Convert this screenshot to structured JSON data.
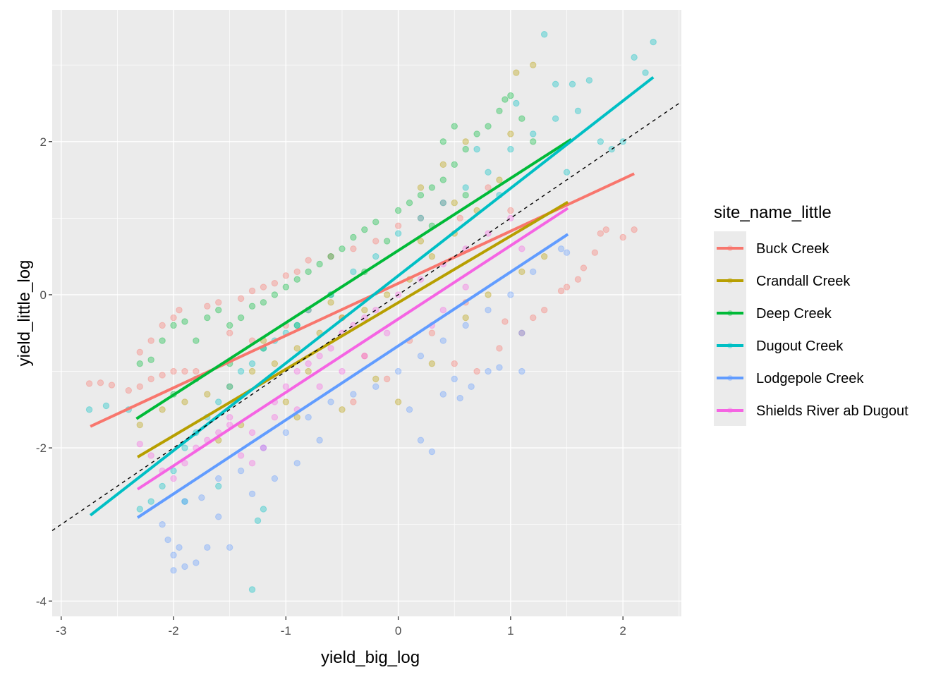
{
  "chart_data": {
    "type": "scatter",
    "title": "",
    "xlabel": "yield_big_log",
    "ylabel": "yield_little_log",
    "xlim": [
      -3.08,
      2.52
    ],
    "ylim": [
      -4.2,
      3.72
    ],
    "x_ticks": [
      -3,
      -2,
      -1,
      0,
      1,
      2
    ],
    "x_tick_labels": [
      "-3",
      "-2",
      "-1",
      "0",
      "1",
      "2"
    ],
    "y_ticks": [
      -4,
      -2,
      0,
      2
    ],
    "y_tick_labels": [
      "-4",
      "-2",
      "0",
      "2"
    ],
    "grid": true,
    "legend": {
      "title": "site_name_little",
      "placement": "right"
    },
    "reference_line": {
      "type": "identity",
      "slope": 1,
      "intercept": 0,
      "style": "dashed",
      "color": "#000000"
    },
    "series": [
      {
        "name": "Buck Creek",
        "color": "#F8766D",
        "fit_line": [
          [
            -2.74,
            -1.72
          ],
          [
            2.1,
            1.58
          ]
        ],
        "points": [
          [
            -2.75,
            -1.16
          ],
          [
            -2.65,
            -1.15
          ],
          [
            -2.55,
            -1.18
          ],
          [
            -2.4,
            -1.25
          ],
          [
            -2.3,
            -1.2
          ],
          [
            -2.2,
            -1.1
          ],
          [
            -2.3,
            -0.75
          ],
          [
            -2.2,
            -0.6
          ],
          [
            -2.1,
            -0.4
          ],
          [
            -2.0,
            -0.3
          ],
          [
            -1.95,
            -0.2
          ],
          [
            -1.9,
            -1.0
          ],
          [
            -2.0,
            -1.0
          ],
          [
            -1.7,
            -0.15
          ],
          [
            -1.6,
            -0.1
          ],
          [
            -1.4,
            -0.05
          ],
          [
            -1.3,
            0.05
          ],
          [
            -1.2,
            0.1
          ],
          [
            -1.1,
            0.15
          ],
          [
            -1.0,
            0.25
          ],
          [
            -0.9,
            0.3
          ],
          [
            -0.8,
            0.45
          ],
          [
            -0.6,
            0.5
          ],
          [
            -0.4,
            0.6
          ],
          [
            -0.2,
            0.7
          ],
          [
            0.0,
            0.9
          ],
          [
            0.2,
            1.0
          ],
          [
            0.4,
            1.2
          ],
          [
            0.55,
            1.0
          ],
          [
            0.8,
            1.4
          ],
          [
            1.0,
            1.1
          ],
          [
            -1.5,
            -0.5
          ],
          [
            -1.3,
            -0.6
          ],
          [
            -1.0,
            -0.4
          ],
          [
            -0.8,
            -0.2
          ],
          [
            -0.5,
            -0.3
          ],
          [
            -0.3,
            -0.8
          ],
          [
            0.1,
            -0.6
          ],
          [
            0.3,
            -0.5
          ],
          [
            0.5,
            -0.9
          ],
          [
            0.7,
            -1.0
          ],
          [
            0.9,
            -0.7
          ],
          [
            1.1,
            -0.5
          ],
          [
            1.2,
            -0.3
          ],
          [
            1.3,
            -0.2
          ],
          [
            1.5,
            0.1
          ],
          [
            1.6,
            0.2
          ],
          [
            1.75,
            0.55
          ],
          [
            1.8,
            0.8
          ],
          [
            1.85,
            0.85
          ],
          [
            2.0,
            0.75
          ],
          [
            2.1,
            0.85
          ],
          [
            1.65,
            0.35
          ],
          [
            1.45,
            0.05
          ],
          [
            0.95,
            -0.35
          ],
          [
            0.6,
            -0.1
          ],
          [
            -0.1,
            -1.1
          ],
          [
            -0.4,
            -1.4
          ],
          [
            -1.8,
            -1.0
          ],
          [
            -2.1,
            -1.05
          ]
        ]
      },
      {
        "name": "Crandall Creek",
        "color": "#B79F00",
        "fit_line": [
          [
            -2.32,
            -2.12
          ],
          [
            1.51,
            1.21
          ]
        ],
        "points": [
          [
            -2.3,
            -1.7
          ],
          [
            -2.1,
            -1.5
          ],
          [
            -1.9,
            -1.4
          ],
          [
            -1.7,
            -1.3
          ],
          [
            -1.5,
            -1.2
          ],
          [
            -1.3,
            -1.0
          ],
          [
            -1.1,
            -0.9
          ],
          [
            -0.9,
            -0.7
          ],
          [
            -0.7,
            -0.5
          ],
          [
            -0.5,
            -0.3
          ],
          [
            -0.3,
            -0.2
          ],
          [
            -0.1,
            0.0
          ],
          [
            0.1,
            0.2
          ],
          [
            0.3,
            0.5
          ],
          [
            0.5,
            0.8
          ],
          [
            0.7,
            1.1
          ],
          [
            0.9,
            1.5
          ],
          [
            1.0,
            2.1
          ],
          [
            1.05,
            2.9
          ],
          [
            1.2,
            3.0
          ],
          [
            0.6,
            2.0
          ],
          [
            0.4,
            1.7
          ],
          [
            0.2,
            1.4
          ],
          [
            -0.2,
            -1.1
          ],
          [
            -0.5,
            -1.5
          ],
          [
            -0.9,
            -1.6
          ],
          [
            0.0,
            -1.4
          ],
          [
            0.3,
            -0.9
          ],
          [
            0.6,
            -0.3
          ],
          [
            0.8,
            0.0
          ],
          [
            1.1,
            0.3
          ],
          [
            1.3,
            0.5
          ],
          [
            -1.6,
            -1.9
          ],
          [
            -1.4,
            -1.7
          ],
          [
            -1.0,
            -1.4
          ],
          [
            -0.8,
            -1.0
          ],
          [
            -1.2,
            -0.6
          ],
          [
            -0.6,
            -0.1
          ],
          [
            0.2,
            0.7
          ],
          [
            0.5,
            1.2
          ]
        ]
      },
      {
        "name": "Deep Creek",
        "color": "#00BA38",
        "fit_line": [
          [
            -2.33,
            -1.62
          ],
          [
            1.54,
            2.03
          ]
        ],
        "points": [
          [
            -2.3,
            -0.9
          ],
          [
            -2.2,
            -0.85
          ],
          [
            -2.1,
            -0.6
          ],
          [
            -2.0,
            -0.4
          ],
          [
            -1.9,
            -0.35
          ],
          [
            -1.8,
            -0.6
          ],
          [
            -1.7,
            -0.3
          ],
          [
            -1.6,
            -0.2
          ],
          [
            -1.5,
            -0.4
          ],
          [
            -1.4,
            -0.3
          ],
          [
            -1.3,
            -0.15
          ],
          [
            -1.2,
            -0.1
          ],
          [
            -1.1,
            0.0
          ],
          [
            -1.0,
            0.1
          ],
          [
            -0.9,
            0.2
          ],
          [
            -0.8,
            0.3
          ],
          [
            -0.7,
            0.4
          ],
          [
            -0.6,
            0.5
          ],
          [
            -0.5,
            0.6
          ],
          [
            -0.4,
            0.75
          ],
          [
            -0.3,
            0.85
          ],
          [
            -0.2,
            0.95
          ],
          [
            0.0,
            1.1
          ],
          [
            0.1,
            1.2
          ],
          [
            0.2,
            1.3
          ],
          [
            0.3,
            1.4
          ],
          [
            0.4,
            1.5
          ],
          [
            0.5,
            1.7
          ],
          [
            0.6,
            1.9
          ],
          [
            0.7,
            2.1
          ],
          [
            0.8,
            2.2
          ],
          [
            0.9,
            2.4
          ],
          [
            1.0,
            2.6
          ],
          [
            0.5,
            2.2
          ],
          [
            0.4,
            2.0
          ],
          [
            0.95,
            2.55
          ],
          [
            1.1,
            2.3
          ],
          [
            1.2,
            2.0
          ],
          [
            -0.1,
            0.7
          ],
          [
            -0.3,
            0.3
          ],
          [
            -0.6,
            0.0
          ],
          [
            -0.9,
            -0.4
          ],
          [
            -1.2,
            -0.7
          ],
          [
            -1.5,
            -0.9
          ],
          [
            -1.8,
            -1.1
          ],
          [
            -2.0,
            -1.3
          ],
          [
            0.3,
            0.9
          ],
          [
            0.6,
            1.3
          ]
        ]
      },
      {
        "name": "Dugout Creek",
        "color": "#00BFC4",
        "fit_line": [
          [
            -2.74,
            -2.88
          ],
          [
            2.27,
            2.84
          ]
        ],
        "points": [
          [
            -2.75,
            -1.5
          ],
          [
            -2.6,
            -1.45
          ],
          [
            -2.4,
            -1.5
          ],
          [
            -2.3,
            -2.8
          ],
          [
            -2.2,
            -2.7
          ],
          [
            -2.1,
            -2.5
          ],
          [
            -2.0,
            -2.3
          ],
          [
            -1.9,
            -2.0
          ],
          [
            -1.8,
            -1.8
          ],
          [
            -1.7,
            -1.6
          ],
          [
            -1.6,
            -1.4
          ],
          [
            -1.5,
            -1.2
          ],
          [
            -1.4,
            -1.0
          ],
          [
            -1.3,
            -0.9
          ],
          [
            -1.2,
            -0.7
          ],
          [
            -1.1,
            -0.6
          ],
          [
            -1.0,
            -0.5
          ],
          [
            -0.9,
            -0.4
          ],
          [
            -0.8,
            -0.2
          ],
          [
            -0.6,
            0.0
          ],
          [
            -0.4,
            0.3
          ],
          [
            -0.2,
            0.5
          ],
          [
            0.0,
            0.8
          ],
          [
            0.2,
            1.0
          ],
          [
            0.4,
            1.2
          ],
          [
            0.6,
            1.4
          ],
          [
            0.8,
            1.6
          ],
          [
            1.0,
            1.9
          ],
          [
            1.2,
            2.1
          ],
          [
            1.4,
            2.3
          ],
          [
            1.6,
            2.4
          ],
          [
            1.7,
            2.8
          ],
          [
            1.8,
            2.0
          ],
          [
            2.0,
            2.0
          ],
          [
            2.1,
            3.1
          ],
          [
            2.2,
            2.9
          ],
          [
            2.27,
            3.3
          ],
          [
            1.3,
            3.4
          ],
          [
            1.05,
            2.5
          ],
          [
            1.4,
            2.75
          ],
          [
            1.55,
            2.75
          ],
          [
            -1.2,
            -2.8
          ],
          [
            -1.25,
            -2.95
          ],
          [
            -1.3,
            -3.85
          ],
          [
            -1.6,
            -2.5
          ],
          [
            -1.9,
            -2.7
          ],
          [
            0.7,
            1.9
          ],
          [
            0.9,
            1.3
          ],
          [
            1.5,
            1.6
          ],
          [
            1.9,
            1.9
          ]
        ]
      },
      {
        "name": "Lodgepole Creek",
        "color": "#619CFF",
        "fit_line": [
          [
            -2.32,
            -2.91
          ],
          [
            1.51,
            0.79
          ]
        ],
        "points": [
          [
            -2.1,
            -3.0
          ],
          [
            -2.05,
            -3.2
          ],
          [
            -2.0,
            -3.4
          ],
          [
            -2.0,
            -3.6
          ],
          [
            -1.95,
            -3.3
          ],
          [
            -1.9,
            -3.55
          ],
          [
            -1.8,
            -3.5
          ],
          [
            -1.7,
            -3.3
          ],
          [
            -1.6,
            -2.9
          ],
          [
            -1.5,
            -3.3
          ],
          [
            -1.9,
            -2.7
          ],
          [
            -1.75,
            -2.65
          ],
          [
            -1.6,
            -2.4
          ],
          [
            -1.4,
            -2.3
          ],
          [
            -1.2,
            -2.0
          ],
          [
            -1.0,
            -1.8
          ],
          [
            -0.8,
            -1.6
          ],
          [
            -0.6,
            -1.4
          ],
          [
            -0.4,
            -1.3
          ],
          [
            -0.2,
            -1.2
          ],
          [
            0.0,
            -1.0
          ],
          [
            0.2,
            -0.8
          ],
          [
            0.4,
            -0.6
          ],
          [
            0.6,
            -0.4
          ],
          [
            0.8,
            -0.2
          ],
          [
            1.0,
            0.0
          ],
          [
            1.2,
            0.3
          ],
          [
            1.45,
            0.6
          ],
          [
            1.5,
            0.55
          ],
          [
            0.5,
            -1.1
          ],
          [
            0.65,
            -1.2
          ],
          [
            0.8,
            -1.0
          ],
          [
            0.9,
            -0.95
          ],
          [
            1.1,
            -1.0
          ],
          [
            0.4,
            -1.3
          ],
          [
            0.2,
            -1.9
          ],
          [
            0.3,
            -2.05
          ],
          [
            0.55,
            -1.35
          ],
          [
            0.1,
            -1.5
          ],
          [
            1.1,
            -0.5
          ],
          [
            -1.3,
            -2.6
          ],
          [
            -1.1,
            -2.4
          ],
          [
            -0.9,
            -2.2
          ],
          [
            -0.7,
            -1.9
          ]
        ]
      },
      {
        "name": "Shields River ab Dugout",
        "color": "#F564E3",
        "fit_line": [
          [
            -2.32,
            -2.54
          ],
          [
            1.51,
            1.13
          ]
        ],
        "points": [
          [
            -2.3,
            -1.95
          ],
          [
            -2.2,
            -2.1
          ],
          [
            -2.1,
            -2.3
          ],
          [
            -2.0,
            -2.4
          ],
          [
            -1.9,
            -2.2
          ],
          [
            -1.8,
            -2.0
          ],
          [
            -1.7,
            -1.9
          ],
          [
            -1.6,
            -1.8
          ],
          [
            -1.5,
            -1.7
          ],
          [
            -1.4,
            -2.1
          ],
          [
            -1.3,
            -2.2
          ],
          [
            -1.2,
            -2.0
          ],
          [
            -1.1,
            -1.4
          ],
          [
            -1.0,
            -1.2
          ],
          [
            -0.9,
            -1.0
          ],
          [
            -0.8,
            -0.9
          ],
          [
            -0.7,
            -0.8
          ],
          [
            -0.6,
            -0.7
          ],
          [
            -0.5,
            -0.5
          ],
          [
            -0.4,
            -0.4
          ],
          [
            -0.3,
            -0.3
          ],
          [
            -0.2,
            -0.2
          ],
          [
            0.0,
            0.0
          ],
          [
            0.2,
            0.2
          ],
          [
            0.4,
            0.4
          ],
          [
            0.6,
            0.6
          ],
          [
            0.8,
            0.8
          ],
          [
            1.0,
            1.0
          ],
          [
            1.1,
            0.6
          ],
          [
            -0.1,
            -0.5
          ],
          [
            -0.3,
            -0.8
          ],
          [
            -0.5,
            -1.0
          ],
          [
            -0.7,
            -1.2
          ],
          [
            -0.9,
            -1.5
          ],
          [
            -1.1,
            -1.6
          ],
          [
            -1.3,
            -1.8
          ],
          [
            -1.5,
            -1.6
          ],
          [
            0.4,
            -0.2
          ],
          [
            0.6,
            0.1
          ],
          [
            0.3,
            -0.4
          ]
        ]
      }
    ]
  }
}
